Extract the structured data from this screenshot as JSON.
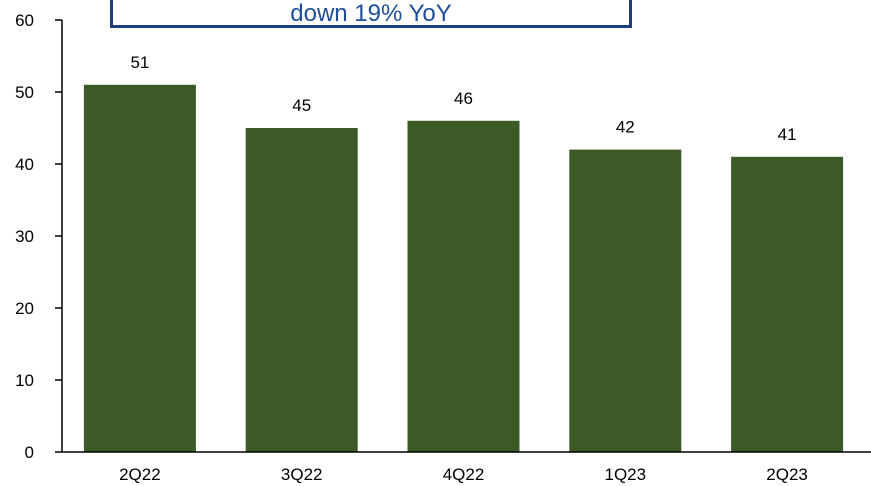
{
  "chart_data": {
    "type": "bar",
    "categories": [
      "2Q22",
      "3Q22",
      "4Q22",
      "1Q23",
      "2Q23"
    ],
    "values": [
      51,
      45,
      46,
      42,
      41
    ],
    "data_labels": [
      "51",
      "45",
      "46",
      "42",
      "41"
    ],
    "ylim": [
      0,
      60
    ],
    "yticks": [
      0,
      10,
      20,
      30,
      40,
      50,
      60
    ],
    "ytick_labels": [
      "0",
      "10",
      "20",
      "30",
      "40",
      "50",
      "60"
    ],
    "grid": false,
    "colors": {
      "bar": "#3b5a25",
      "axis": "#000000"
    },
    "annotation": "down 19% YoY"
  }
}
